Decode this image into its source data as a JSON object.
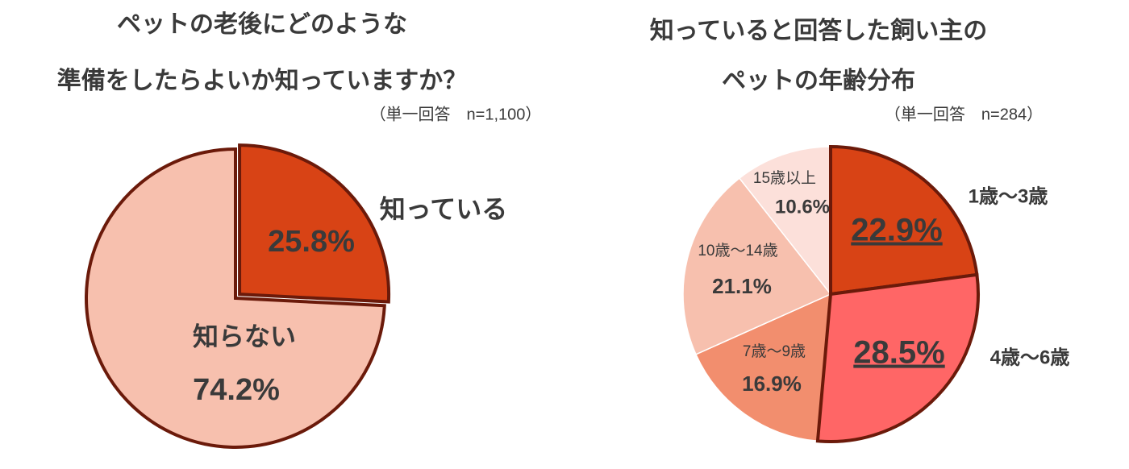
{
  "chart_data": [
    {
      "type": "pie",
      "title": [
        "ペットの老後にどのような",
        "準備をしたらよいか知っていますか？"
      ],
      "subtitle": "（単一回答　n=1,100）",
      "categories": [
        "知っている",
        "知らない"
      ],
      "values": [
        25.8,
        74.2
      ],
      "value_labels": [
        "25.8%",
        "74.2%"
      ],
      "colors": [
        "#d84315",
        "#f7c0ae"
      ],
      "edgecolors": [
        "#6b1a0a",
        "#6b1a0a"
      ]
    },
    {
      "type": "pie",
      "title": [
        "知っていると回答した飼い主の",
        "ペットの年齢分布"
      ],
      "subtitle": "（単一回答　n=284）",
      "categories": [
        "1歳～3歳",
        "4歳～6歳",
        "7歳～9歳",
        "10歳～14歳",
        "15歳以上"
      ],
      "values": [
        22.9,
        28.5,
        16.9,
        21.1,
        10.6
      ],
      "value_labels": [
        "22.9%",
        "28.5%",
        "16.9%",
        "21.1%",
        "10.6%"
      ],
      "colors": [
        "#d84315",
        "#ff6666",
        "#f28e6e",
        "#f7c0ae",
        "#fce0da"
      ],
      "edgecolors": [
        "#6b1a0a",
        "#6b1a0a",
        "#ffffff",
        "#ffffff",
        "#ffffff"
      ]
    }
  ]
}
